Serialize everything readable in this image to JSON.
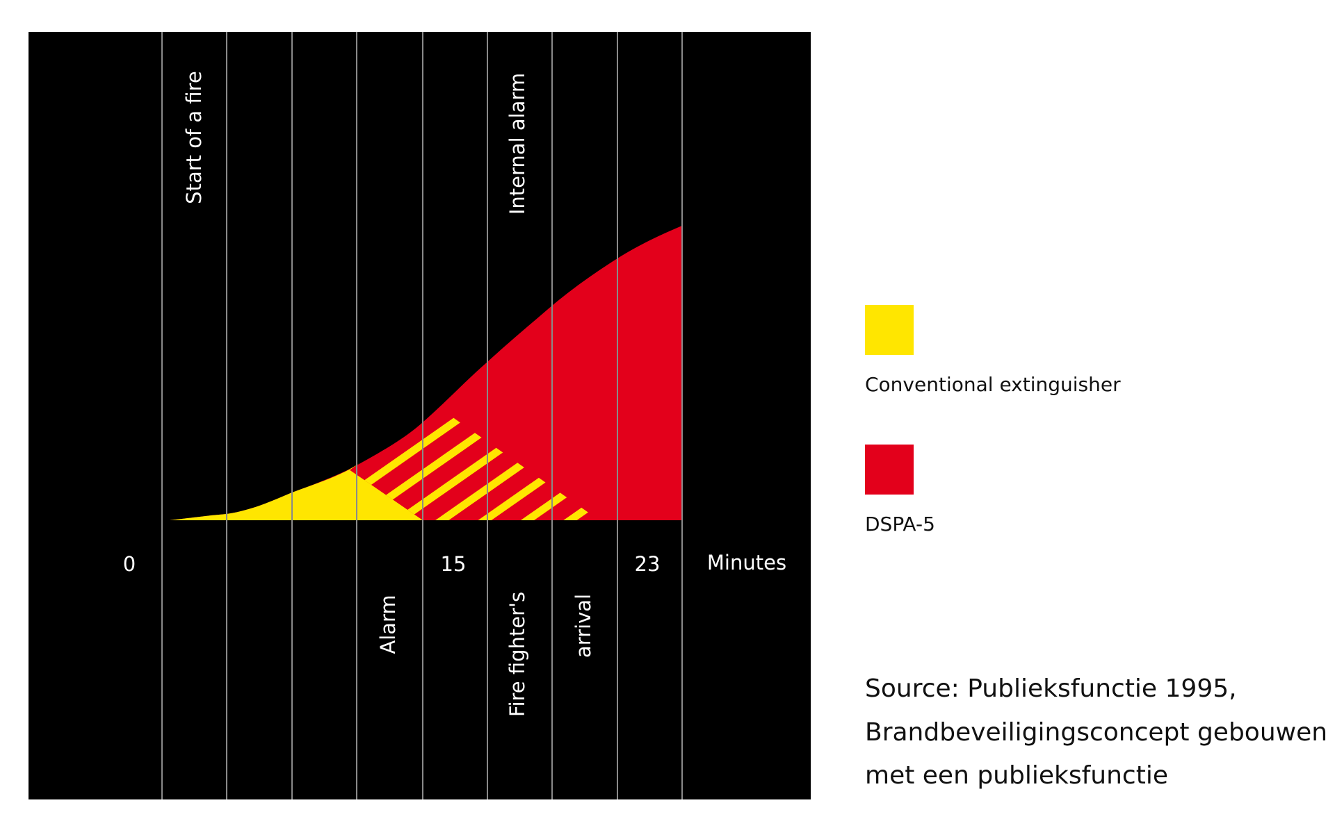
{
  "diagram": {
    "timeline": {
      "events_top": [
        "Start of a fire",
        "Internal alarm"
      ],
      "events_bottom": [
        "Alarm",
        "Fire fighter's",
        "arrival"
      ],
      "ticks": [
        "0",
        "15",
        "23"
      ],
      "unit": "Minutes"
    },
    "legend": {
      "items": [
        {
          "label": "Conventional extinguisher",
          "color": "#ffe600"
        },
        {
          "label": "DSPA-5",
          "color": "#e3001b"
        }
      ]
    },
    "source": [
      "Source: Publieksfunctie 1995,",
      "Brandbeveiligingsconcept gebouwen",
      "met een publieksfunctie"
    ]
  }
}
